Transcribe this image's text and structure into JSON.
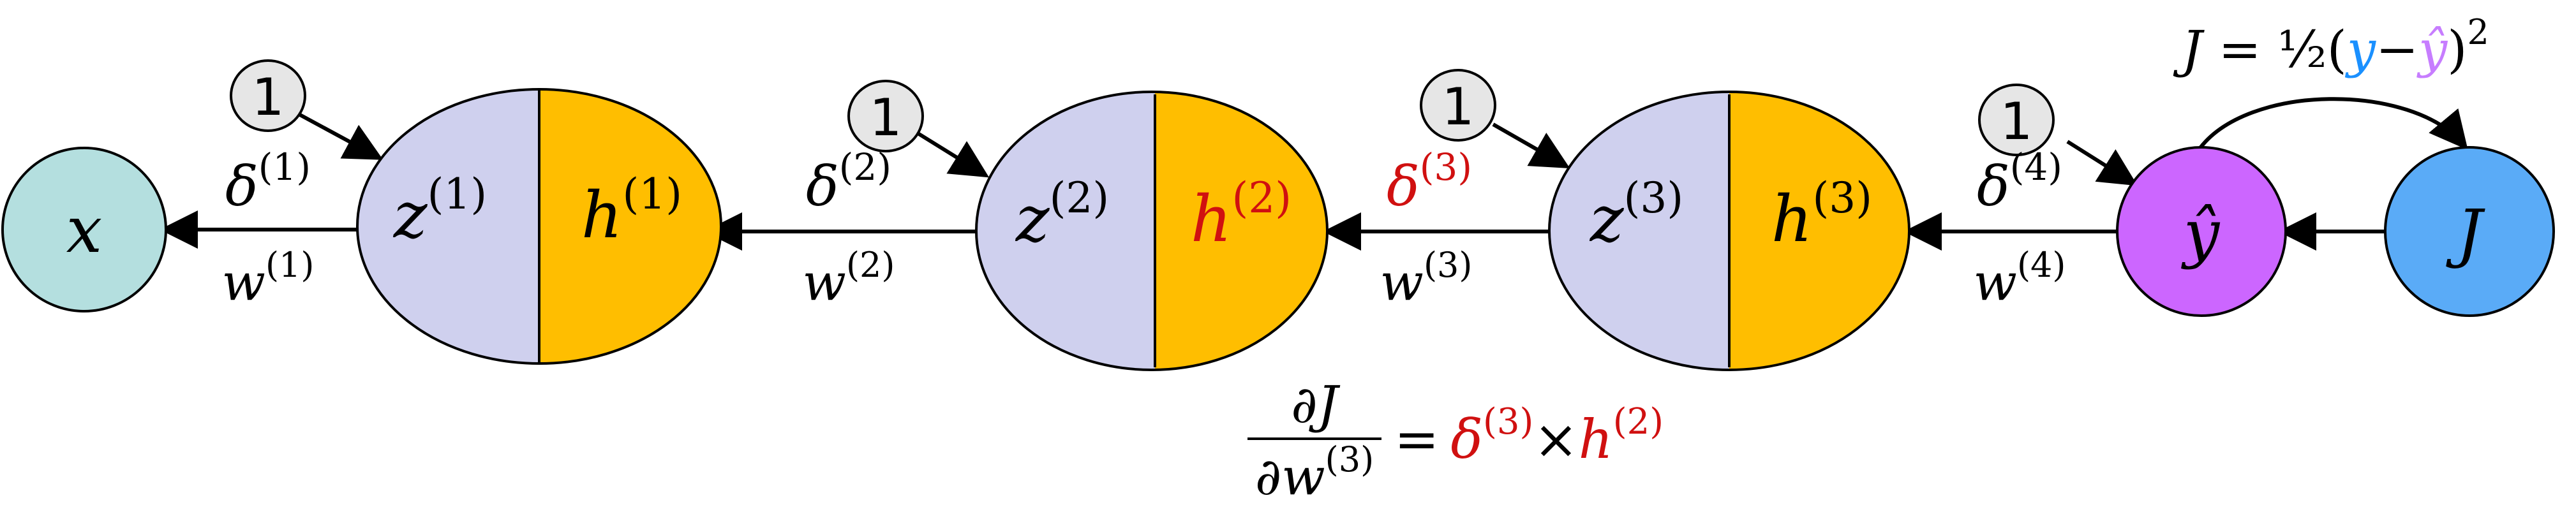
{
  "colors": {
    "input_fill": "#b4dfdf",
    "z_fill": "#cfd0ee",
    "h_fill": "#ffbe00",
    "yhat_fill": "#cc66ff",
    "cost_fill": "#5aabf7",
    "bias_fill": "#e6e6e6",
    "highlight": "#d01010",
    "y_blue": "#1a90ff",
    "yhat_purple": "#c77dff",
    "stroke": "#000000"
  },
  "input_node": {
    "label": "x"
  },
  "layers": [
    {
      "z_base": "z",
      "h_base": "h",
      "index": "(1)",
      "bias": "1",
      "delta_base": "δ",
      "delta_index": "(1)",
      "w_base": "w",
      "w_index": "(1)",
      "highlight_h": false,
      "highlight_delta": false
    },
    {
      "z_base": "z",
      "h_base": "h",
      "index": "(2)",
      "bias": "1",
      "delta_base": "δ",
      "delta_index": "(2)",
      "w_base": "w",
      "w_index": "(2)",
      "highlight_h": true,
      "highlight_delta": false
    },
    {
      "z_base": "z",
      "h_base": "h",
      "index": "(3)",
      "bias": "1",
      "delta_base": "δ",
      "delta_index": "(3)",
      "w_base": "w",
      "w_index": "(3)",
      "highlight_h": false,
      "highlight_delta": true
    }
  ],
  "output_node": {
    "label": "ŷ",
    "bias": "1",
    "delta_base": "δ",
    "delta_index": "(4)",
    "w_base": "w",
    "w_index": "(4)"
  },
  "cost_node": {
    "label": "J"
  },
  "cost_formula": {
    "lhs": "J = ",
    "half": "½",
    "open": "(",
    "y": "y",
    "minus": "−",
    "yhat": "ŷ",
    "close": ")",
    "power": "2"
  },
  "gradient_formula": {
    "numerator": "∂J",
    "denominator_base": "∂w",
    "denominator_index": "(3)",
    "equals": "=",
    "delta_base": "δ",
    "delta_index": "(3)",
    "times": "×",
    "h_base": "h",
    "h_index": "(2)"
  }
}
